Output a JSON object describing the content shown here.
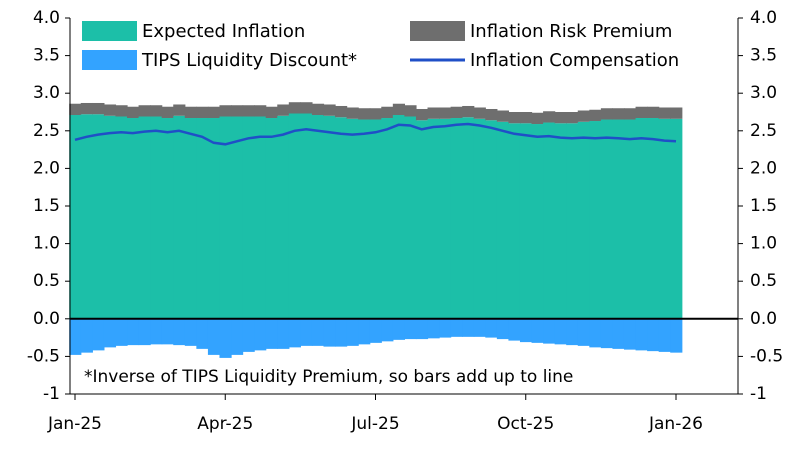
{
  "chart_data": {
    "type": "stacked-bar-line",
    "categories": [
      "Jan-25",
      null,
      null,
      null,
      null,
      null,
      null,
      null,
      null,
      null,
      null,
      null,
      null,
      "Apr-25",
      null,
      null,
      null,
      null,
      null,
      null,
      null,
      null,
      null,
      null,
      null,
      null,
      "Jul-25",
      null,
      null,
      null,
      null,
      null,
      null,
      null,
      null,
      null,
      null,
      null,
      null,
      "Oct-25",
      null,
      null,
      null,
      null,
      null,
      null,
      null,
      null,
      null,
      null,
      null,
      null,
      "Jan-26"
    ],
    "series": [
      {
        "name": "Expected Inflation",
        "color": "#1cbfa8",
        "kind": "bar",
        "values": [
          2.71,
          2.72,
          2.72,
          2.7,
          2.69,
          2.67,
          2.69,
          2.69,
          2.67,
          2.7,
          2.67,
          2.67,
          2.67,
          2.69,
          2.69,
          2.69,
          2.69,
          2.67,
          2.7,
          2.73,
          2.73,
          2.71,
          2.7,
          2.68,
          2.66,
          2.65,
          2.65,
          2.67,
          2.71,
          2.69,
          2.64,
          2.66,
          2.66,
          2.67,
          2.68,
          2.66,
          2.64,
          2.62,
          2.6,
          2.6,
          2.59,
          2.61,
          2.6,
          2.6,
          2.62,
          2.63,
          2.65,
          2.65,
          2.65,
          2.67,
          2.67,
          2.66,
          2.66
        ]
      },
      {
        "name": "Inflation Risk Premium",
        "color": "#6e6e6e",
        "kind": "bar",
        "values": [
          0.15,
          0.15,
          0.15,
          0.15,
          0.15,
          0.15,
          0.15,
          0.15,
          0.15,
          0.15,
          0.15,
          0.15,
          0.15,
          0.15,
          0.15,
          0.15,
          0.15,
          0.15,
          0.15,
          0.15,
          0.15,
          0.15,
          0.15,
          0.15,
          0.15,
          0.15,
          0.15,
          0.15,
          0.15,
          0.15,
          0.15,
          0.15,
          0.15,
          0.15,
          0.15,
          0.15,
          0.15,
          0.15,
          0.15,
          0.15,
          0.15,
          0.15,
          0.15,
          0.15,
          0.15,
          0.15,
          0.15,
          0.15,
          0.15,
          0.15,
          0.15,
          0.15,
          0.15
        ]
      },
      {
        "name": "TIPS Liquidity Discount*",
        "color": "#33a3ff",
        "kind": "bar",
        "values": [
          -0.48,
          -0.45,
          -0.42,
          -0.38,
          -0.36,
          -0.35,
          -0.35,
          -0.34,
          -0.34,
          -0.35,
          -0.36,
          -0.4,
          -0.48,
          -0.52,
          -0.48,
          -0.44,
          -0.42,
          -0.4,
          -0.4,
          -0.38,
          -0.36,
          -0.36,
          -0.37,
          -0.37,
          -0.36,
          -0.34,
          -0.32,
          -0.3,
          -0.28,
          -0.27,
          -0.27,
          -0.26,
          -0.25,
          -0.24,
          -0.24,
          -0.24,
          -0.25,
          -0.27,
          -0.29,
          -0.31,
          -0.32,
          -0.33,
          -0.34,
          -0.35,
          -0.36,
          -0.38,
          -0.39,
          -0.4,
          -0.41,
          -0.42,
          -0.43,
          -0.44,
          -0.45
        ]
      },
      {
        "name": "Inflation Compensation",
        "color": "#1f4fc7",
        "kind": "line",
        "values": [
          2.38,
          2.42,
          2.45,
          2.47,
          2.48,
          2.47,
          2.49,
          2.5,
          2.48,
          2.5,
          2.46,
          2.42,
          2.34,
          2.32,
          2.36,
          2.4,
          2.42,
          2.42,
          2.45,
          2.5,
          2.52,
          2.5,
          2.48,
          2.46,
          2.45,
          2.46,
          2.48,
          2.52,
          2.58,
          2.57,
          2.52,
          2.55,
          2.56,
          2.58,
          2.59,
          2.57,
          2.54,
          2.5,
          2.46,
          2.44,
          2.42,
          2.43,
          2.41,
          2.4,
          2.41,
          2.4,
          2.41,
          2.4,
          2.39,
          2.4,
          2.39,
          2.37,
          2.36
        ]
      }
    ],
    "ylim": [
      -1,
      4
    ],
    "yticks": [
      -1,
      -0.5,
      {
        "value": 0,
        "label": "0.0"
      },
      0.5,
      {
        "value": 1,
        "label": "1.0"
      },
      1.5,
      {
        "value": 2,
        "label": "2.0"
      },
      2.5,
      {
        "value": 3,
        "label": "3.0"
      },
      3.5,
      {
        "value": 4,
        "label": "4.0"
      }
    ],
    "y2lim": [
      -1,
      4
    ],
    "y2ticks": [
      -1,
      -0.5,
      {
        "value": 0,
        "label": "0.0"
      },
      0.5,
      {
        "value": 1,
        "label": "1.0"
      },
      1.5,
      {
        "value": 2,
        "label": "2.0"
      },
      2.5,
      {
        "value": 3,
        "label": "3.0"
      },
      3.5,
      {
        "value": 4,
        "label": "4.0"
      }
    ],
    "note": "*Inverse of TIPS Liquidity Premium, so bars add up to line"
  }
}
